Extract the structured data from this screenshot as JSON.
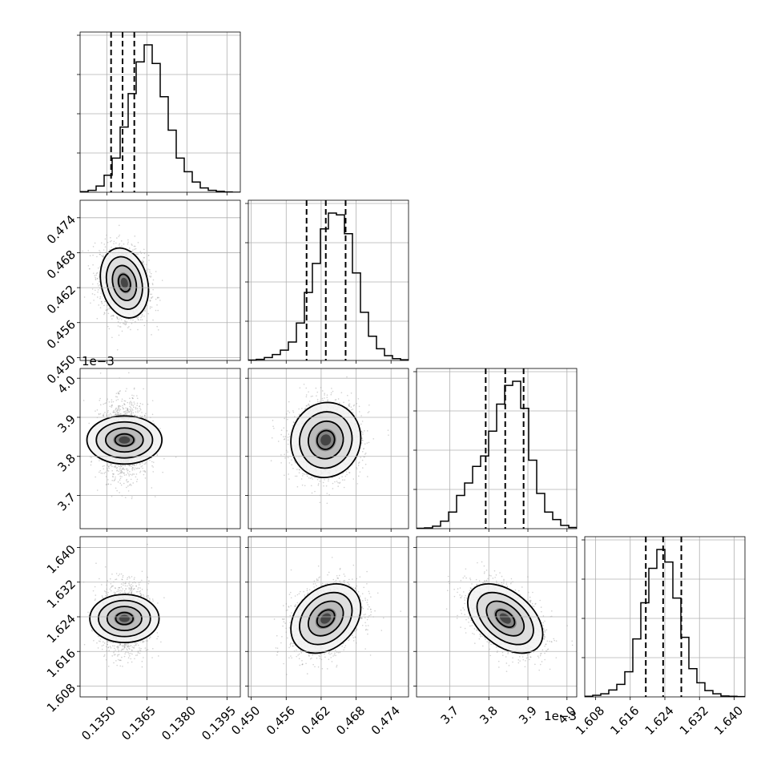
{
  "chart_data": {
    "type": "corner",
    "grid": true,
    "parameters": [
      {
        "range": [
          0.134,
          0.14
        ],
        "ticks": [
          0.135,
          0.1365,
          0.138,
          0.1395
        ],
        "tick_labels": [
          "0.1350",
          "0.1365",
          "0.1380",
          "0.1395"
        ],
        "offset_text": "",
        "mean": 0.13566,
        "std": 0.00045,
        "quantiles": [
          0.13516,
          0.13559,
          0.13603
        ],
        "hist_counts": [
          2,
          6,
          20,
          55,
          110,
          210,
          318,
          420,
          475,
          415,
          308,
          200,
          110,
          66,
          33,
          14,
          6,
          3,
          1,
          0
        ]
      },
      {
        "range": [
          0.4495,
          0.477
        ],
        "ticks": [
          0.45,
          0.456,
          0.462,
          0.468,
          0.474
        ],
        "tick_labels": [
          "0.450",
          "0.456",
          "0.462",
          "0.468",
          "0.474"
        ],
        "offset_text": "",
        "mean": 0.4628,
        "std": 0.003,
        "quantiles": [
          0.4595,
          0.4628,
          0.4662
        ],
        "hist_counts": [
          1,
          3,
          8,
          16,
          28,
          50,
          102,
          185,
          264,
          358,
          401,
          396,
          345,
          238,
          131,
          66,
          32,
          13,
          5,
          2
        ]
      },
      {
        "range": [
          3.615,
          4.025
        ],
        "ticks": [
          3.7,
          3.8,
          3.9,
          4.0
        ],
        "tick_labels": [
          "3.7",
          "3.8",
          "3.9",
          "4.0"
        ],
        "offset_text": "1e−3",
        "mean": 3.842,
        "std": 0.048,
        "quantiles": [
          3.792,
          3.842,
          3.889
        ],
        "hist_counts": [
          1,
          2,
          6,
          18,
          40,
          80,
          110,
          150,
          175,
          235,
          300,
          345,
          355,
          290,
          165,
          85,
          40,
          22,
          8,
          3
        ]
      },
      {
        "range": [
          1.6055,
          1.6425
        ],
        "ticks": [
          1.608,
          1.616,
          1.624,
          1.632,
          1.64
        ],
        "tick_labels": [
          "1.608",
          "1.616",
          "1.624",
          "1.632",
          "1.640"
        ],
        "offset_text": "",
        "mean": 1.6236,
        "std": 0.004,
        "quantiles": [
          1.6196,
          1.6236,
          1.6278
        ],
        "hist_counts": [
          2,
          5,
          10,
          22,
          40,
          80,
          185,
          300,
          410,
          470,
          430,
          315,
          190,
          90,
          45,
          20,
          10,
          3,
          2,
          1
        ]
      }
    ],
    "correlations": [
      [
        1,
        0,
        0,
        0
      ],
      [
        -0.2,
        1,
        0,
        0
      ],
      [
        0.0,
        0.05,
        1,
        0
      ],
      [
        0.0,
        0.3,
        -0.45,
        1
      ]
    ],
    "contour_levels_sigma": [
      0.5,
      1.0,
      1.5,
      2.0
    ]
  }
}
